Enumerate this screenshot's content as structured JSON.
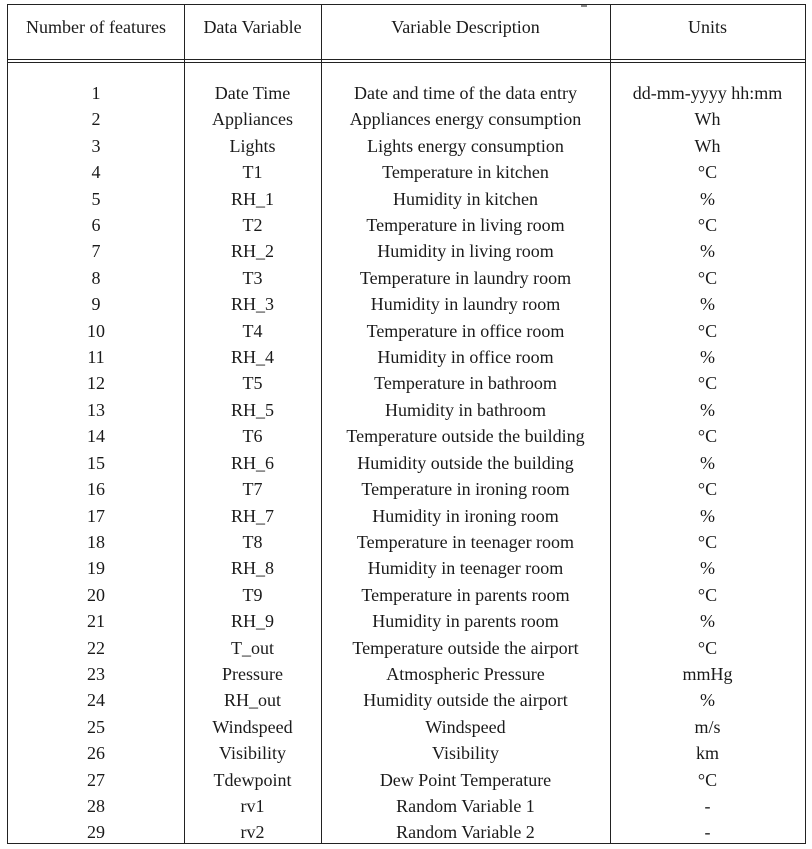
{
  "table": {
    "headers": [
      "Number of features",
      "Data Variable",
      "Variable Description",
      "Units"
    ],
    "rows": [
      [
        "1",
        "Date Time",
        "Date and time of the data entry",
        "dd-mm-yyyy hh:mm"
      ],
      [
        "2",
        "Appliances",
        "Appliances energy consumption",
        "Wh"
      ],
      [
        "3",
        "Lights",
        "Lights energy consumption",
        "Wh"
      ],
      [
        "4",
        "T1",
        "Temperature in kitchen",
        "°C"
      ],
      [
        "5",
        "RH_1",
        "Humidity in kitchen",
        "%"
      ],
      [
        "6",
        "T2",
        "Temperature in living room",
        "°C"
      ],
      [
        "7",
        "RH_2",
        "Humidity in living room",
        "%"
      ],
      [
        "8",
        "T3",
        "Temperature in laundry room",
        "°C"
      ],
      [
        "9",
        "RH_3",
        "Humidity in laundry room",
        "%"
      ],
      [
        "10",
        "T4",
        "Temperature in office room",
        "°C"
      ],
      [
        "11",
        "RH_4",
        "Humidity in office room",
        "%"
      ],
      [
        "12",
        "T5",
        "Temperature in bathroom",
        "°C"
      ],
      [
        "13",
        "RH_5",
        "Humidity in bathroom",
        "%"
      ],
      [
        "14",
        "T6",
        "Temperature outside the building",
        "°C"
      ],
      [
        "15",
        "RH_6",
        "Humidity outside the building",
        "%"
      ],
      [
        "16",
        "T7",
        "Temperature in ironing room",
        "°C"
      ],
      [
        "17",
        "RH_7",
        "Humidity in ironing room",
        "%"
      ],
      [
        "18",
        "T8",
        "Temperature in teenager room",
        "°C"
      ],
      [
        "19",
        "RH_8",
        "Humidity in teenager room",
        "%"
      ],
      [
        "20",
        "T9",
        "Temperature in parents room",
        "°C"
      ],
      [
        "21",
        "RH_9",
        "Humidity in parents room",
        "%"
      ],
      [
        "22",
        "T_out",
        "Temperature outside the airport",
        "°C"
      ],
      [
        "23",
        "Pressure",
        "Atmospheric Pressure",
        "mmHg"
      ],
      [
        "24",
        "RH_out",
        "Humidity outside the airport",
        "%"
      ],
      [
        "25",
        "Windspeed",
        "Windspeed",
        "m/s"
      ],
      [
        "26",
        "Visibility",
        "Visibility",
        "km"
      ],
      [
        "27",
        "Tdewpoint",
        "Dew Point Temperature",
        "°C"
      ],
      [
        "28",
        "rv1",
        "Random Variable 1",
        "-"
      ],
      [
        "29",
        "rv2",
        "Random Variable 2",
        "-"
      ]
    ]
  }
}
